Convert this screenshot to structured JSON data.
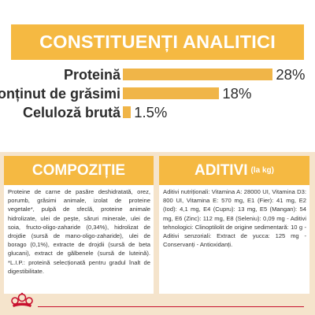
{
  "analytic": {
    "title": "CONSTITUENȚI ANALITICI",
    "bar_color": "#f0b548",
    "rows": [
      {
        "label": "Proteină",
        "value": "28%",
        "percent": 28
      },
      {
        "label": "Conținut de grăsimi",
        "value": "18%",
        "percent": 18
      },
      {
        "label": "Celuloză brută",
        "value": "1.5%",
        "percent": 1.5
      }
    ]
  },
  "composition": {
    "title": "COMPOZIȚIE",
    "text": "Proteine de carne de pasăre deshidratată, orez, porumb, grăsimi animale, izolat de proteine vegetale*, pulpă de sfeclă, proteine animale hidrolizate, ulei de pește, săruri minerale, ulei de soia, fructo-oligo-zaharide (0,34%), hidrolizat de drojdie (sursă de mano-oligo-zaharide), ulei de borago (0,1%), extracte de drojdii (sursă de beta glucani), extract de gălbenele (sursă de luteină). *L.I.P.: proteină selecționată pentru gradul înalt de digestibilitate."
  },
  "additives": {
    "title": "ADITIVI",
    "unit": "(la kg)",
    "text": "Aditivi nutriționali: Vitamina A: 28000 UI, Vitamina D3: 800 UI, Vitamina E: 570 mg, E1 (Fier): 41 mg, E2 (Iod): 4,1 mg, E4 (Cupru): 13 mg, E5 (Mangan): 54 mg, E6 (Zinc): 112 mg, E8 (Seleniu): 0,09 mg - Aditivi tehnologici: Clinoptilolit de origine sedimentară: 10 g - Aditivi senzoriali: Extract de yucca: 125 mg - Conservanți - Antioxidanți."
  },
  "brand": {
    "logo": "royal-canin-crown-logo",
    "primary_color": "#c8102e",
    "accent": "#f5b942",
    "background": "#f5e4cc"
  }
}
